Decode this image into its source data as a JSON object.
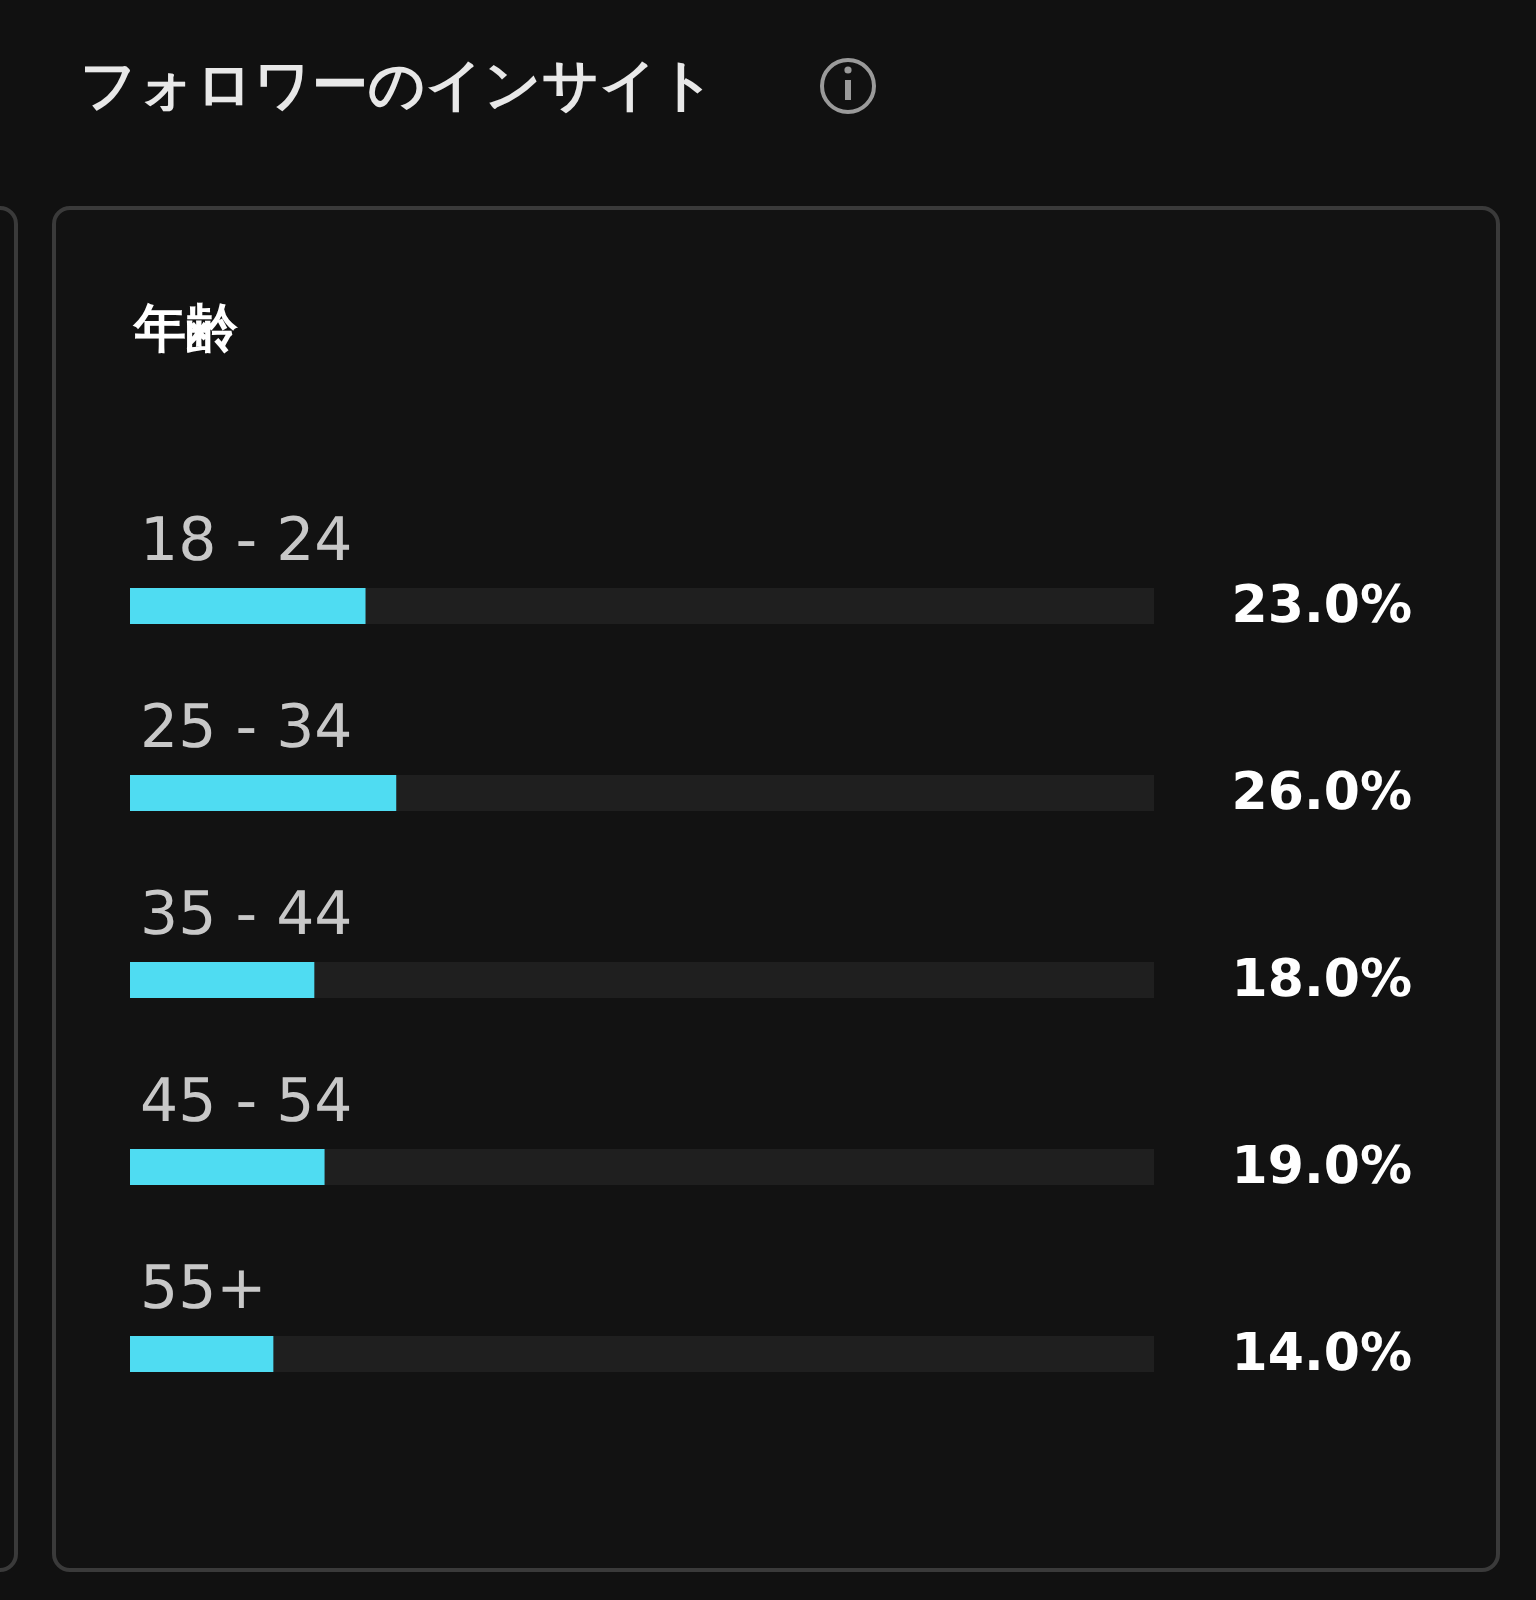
{
  "chart_data": {
    "type": "bar",
    "orientation": "horizontal",
    "title": "フォロワーのインサイト",
    "subtitle": "年齢",
    "categories": [
      "18 - 24",
      "25 - 34",
      "35 - 44",
      "45 - 54",
      "55+"
    ],
    "values": [
      23.0,
      26.0,
      18.0,
      19.0,
      14.0
    ],
    "value_labels": [
      "23.0%",
      "26.0%",
      "18.0%",
      "19.0%",
      "14.0%"
    ],
    "color": "#4fdcf2",
    "xlim": [
      0,
      100
    ]
  }
}
